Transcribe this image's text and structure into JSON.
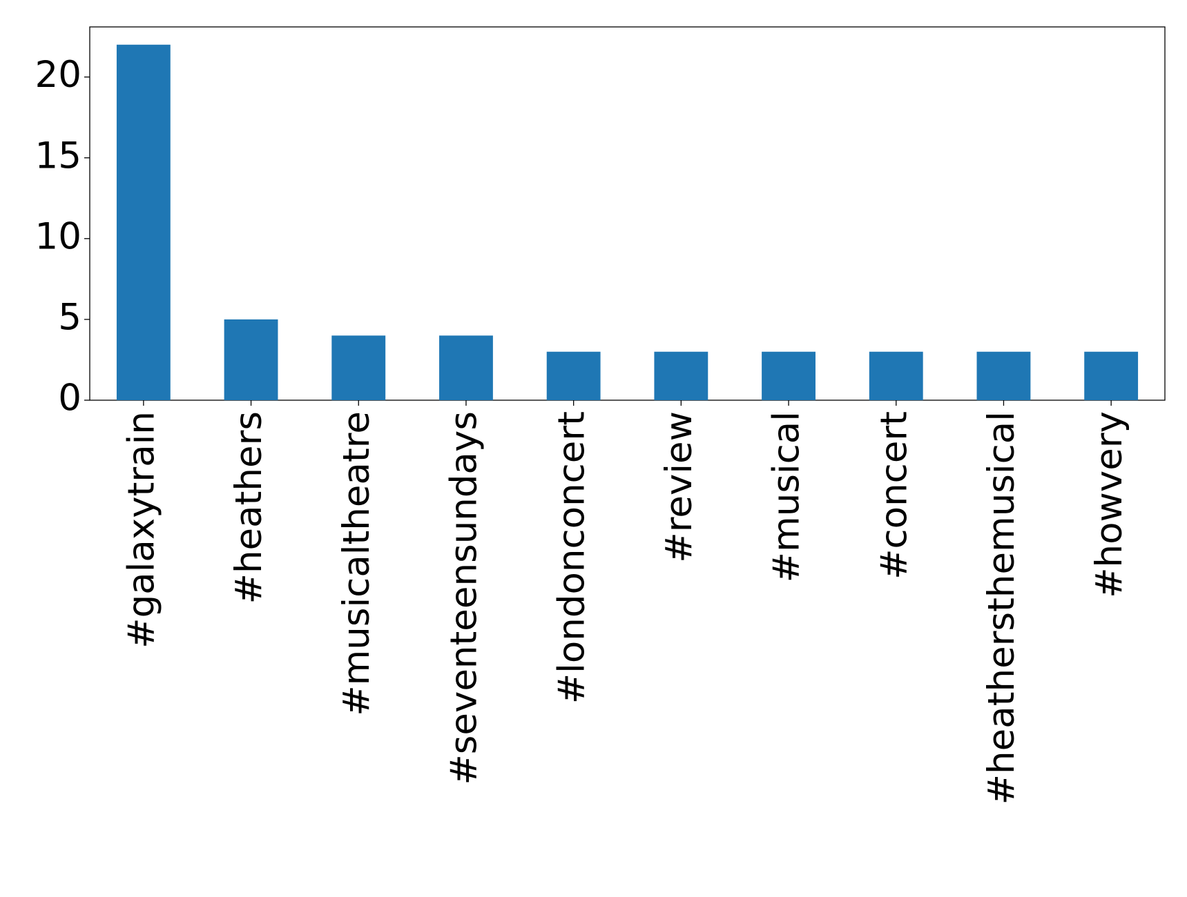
{
  "chart_data": {
    "type": "bar",
    "categories": [
      "#galaxytrain",
      "#heathers",
      "#musicaltheatre",
      "#seventeensundays",
      "#londonconcert",
      "#review",
      "#musical",
      "#concert",
      "#heathersthemusical",
      "#howvery"
    ],
    "values": [
      22,
      5,
      4,
      4,
      3,
      3,
      3,
      3,
      3,
      3
    ],
    "color": "#1f77b4",
    "ylim": [
      0,
      23.1
    ],
    "yticks": [
      0,
      5,
      10,
      15,
      20
    ],
    "grid": false
  }
}
